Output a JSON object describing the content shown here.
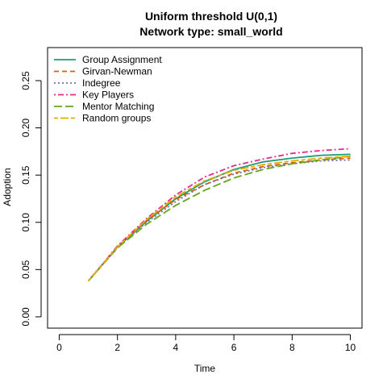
{
  "chart_data": {
    "type": "line",
    "title": "Uniform threshold U(0,1)",
    "subtitle": "Network type: small_world",
    "xlabel": "Time",
    "ylabel": "Adoption",
    "xlim": [
      -0.4,
      10.4
    ],
    "ylim": [
      -0.012,
      0.285
    ],
    "xticks": [
      "0",
      "2",
      "4",
      "6",
      "8",
      "10"
    ],
    "yticks": [
      "0.00",
      "0.05",
      "0.10",
      "0.15",
      "0.20",
      "0.25"
    ],
    "legend_position": "top-left",
    "x": [
      1,
      2,
      3,
      4,
      5,
      6,
      7,
      8,
      9,
      10
    ],
    "series": [
      {
        "name": "Group Assignment",
        "color": "#1b9e77",
        "dash": "solid",
        "values": [
          0.038,
          0.074,
          0.101,
          0.125,
          0.143,
          0.156,
          0.164,
          0.168,
          0.171,
          0.172
        ]
      },
      {
        "name": "Girvan-Newman",
        "color": "#d95f02",
        "dash": "dashed",
        "values": [
          0.038,
          0.074,
          0.102,
          0.124,
          0.14,
          0.152,
          0.159,
          0.163,
          0.166,
          0.168
        ]
      },
      {
        "name": "Indegree",
        "color": "#7570b3",
        "dash": "dotted",
        "values": [
          0.038,
          0.073,
          0.1,
          0.122,
          0.14,
          0.151,
          0.158,
          0.162,
          0.165,
          0.166
        ]
      },
      {
        "name": "Key Players",
        "color": "#e7298a",
        "dash": "dotdash",
        "values": [
          0.038,
          0.075,
          0.104,
          0.129,
          0.148,
          0.16,
          0.167,
          0.173,
          0.176,
          0.178
        ]
      },
      {
        "name": "Mentor Matching",
        "color": "#66a61e",
        "dash": "longdash",
        "values": [
          0.038,
          0.073,
          0.098,
          0.118,
          0.134,
          0.147,
          0.156,
          0.162,
          0.166,
          0.17
        ]
      },
      {
        "name": "Random groups",
        "color": "#e6ab02",
        "dash": "twodash",
        "values": [
          0.038,
          0.074,
          0.103,
          0.127,
          0.144,
          0.155,
          0.161,
          0.165,
          0.168,
          0.17
        ]
      }
    ]
  }
}
